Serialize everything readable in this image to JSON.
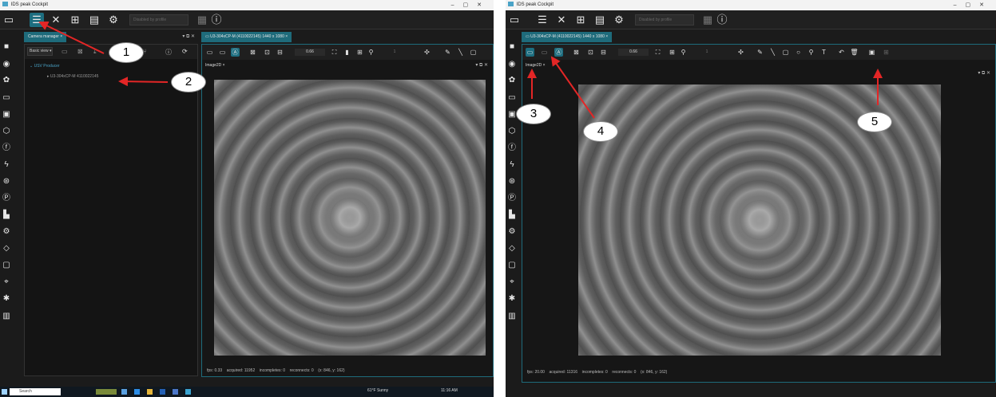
{
  "left": {
    "window_title": "IDS peak Cockpit",
    "profile_placeholder": "Disabled by profile",
    "camera_manager_tab": "Camera manager",
    "camera_tab": "U3-304xCP-M (4110022145) 1440 x 1080",
    "view_select": "Basic view",
    "tree_producer": "USV Producer",
    "tree_camera": "U3-304xCP-M  4110022145",
    "zoom_value": "0.66",
    "frame_value": "1",
    "image_tab": "Image2D",
    "status": {
      "fps": "fps: 0.33",
      "acquired": "acquired: 11952",
      "incompletes": "incompletes: 0",
      "reconnects": "reconnects: 0",
      "coords": "(x: 846, y: 162)"
    },
    "taskbar": {
      "search": "Search",
      "weather": "61°F  Sunny",
      "time": "11:16 AM"
    }
  },
  "right": {
    "window_title": "IDS peak Cockpit",
    "profile_placeholder": "Disabled by profile",
    "camera_tab": "U3-304xCP-M (4110022145) 1440 x 1080",
    "zoom_value": "0.66",
    "frame_value": "1",
    "image_tab": "Image2D",
    "status": {
      "fps": "fps: 20.00",
      "acquired": "acquired: 11316",
      "incompletes": "incompletes: 0",
      "reconnects": "reconnects: 0",
      "coords": "(x: 846, y: 162)"
    }
  },
  "callouts": [
    "1",
    "2",
    "3",
    "4",
    "5"
  ],
  "colors": {
    "accent": "#1d6e80",
    "annotation": "#e32626"
  }
}
